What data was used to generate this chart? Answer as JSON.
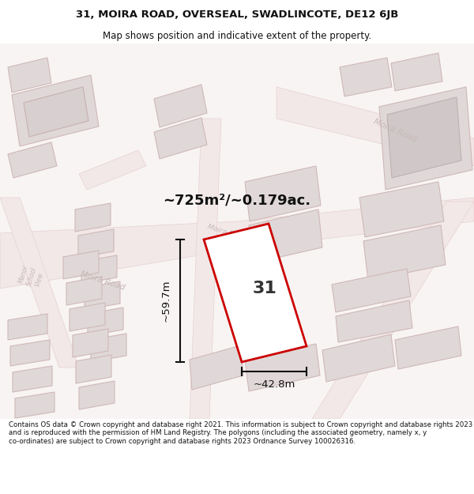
{
  "title_line1": "31, MOIRA ROAD, OVERSEAL, SWADLINCOTE, DE12 6JB",
  "title_line2": "Map shows position and indicative extent of the property.",
  "area_text": "~725m²/~0.179ac.",
  "label_31": "31",
  "dim_height": "~59.7m",
  "dim_width": "~42.8m",
  "footer_text": "Contains OS data © Crown copyright and database right 2021. This information is subject to Crown copyright and database rights 2023 and is reproduced with the permission of HM Land Registry. The polygons (including the associated geometry, namely x, y co-ordinates) are subject to Crown copyright and database rights 2023 Ordnance Survey 100026316.",
  "bg_color": "#f5f0f0",
  "white": "#ffffff",
  "road_fill": "#f2e8e8",
  "road_stroke": "#e8d0d0",
  "building_fill": "#e0d8d8",
  "building_stroke": "#d0b8b8",
  "building_inner_fill": "#d0c8c8",
  "highlight_red": "#cc0000",
  "dim_color": "#111111",
  "road_text_color": "#c8b8b8",
  "title_color": "#111111",
  "footer_color": "#111111"
}
